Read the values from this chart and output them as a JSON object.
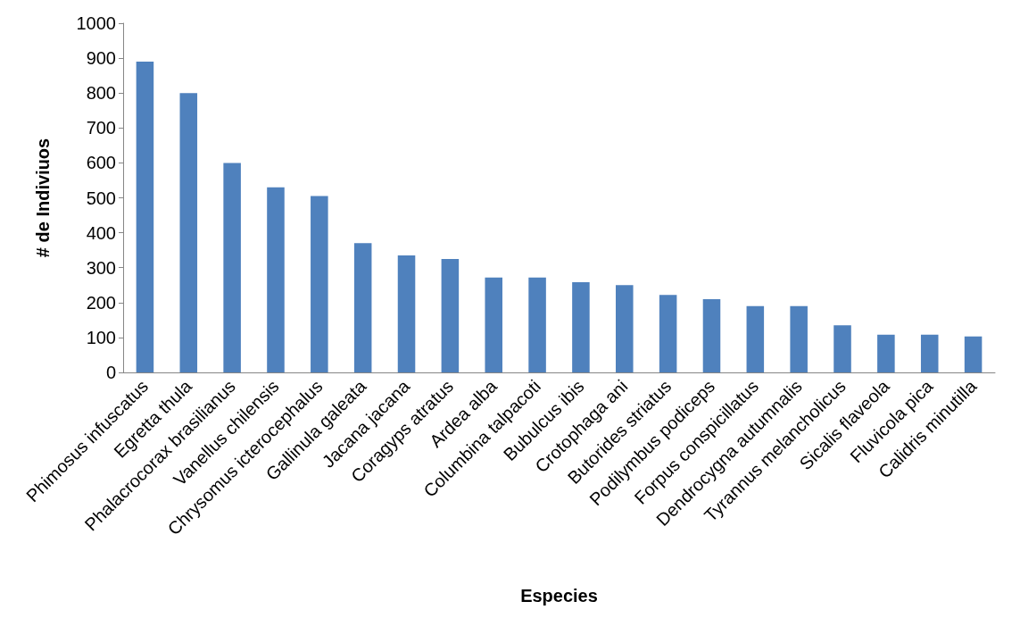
{
  "chart_data": {
    "type": "bar",
    "xlabel": "Especies",
    "ylabel": "# de Indiviuos",
    "categories": [
      "Phimosus infuscatus",
      "Egretta thula",
      "Phalacrocorax brasilianus",
      "Vanellus chilensis",
      "Chrysomus icterocephalus",
      "Gallinula galeata",
      "Jacana jacana",
      "Coragyps atratus",
      "Ardea alba",
      "Columbina talpacoti",
      "Bubulcus ibis",
      "Crotophaga ani",
      "Butorides striatus",
      "Podilymbus podiceps",
      "Forpus conspicillatus",
      "Dendrocygna autumnalis",
      "Tyrannus melancholicus",
      "Sicalis flaveola",
      "Fluvicola pica",
      "Calidris minutilla"
    ],
    "values": [
      890,
      800,
      600,
      530,
      505,
      370,
      335,
      325,
      272,
      272,
      258,
      250,
      222,
      210,
      190,
      190,
      135,
      108,
      108,
      103
    ],
    "color": "#4f81bd",
    "ylim": [
      0,
      1000
    ],
    "yticks": [
      0,
      100,
      200,
      300,
      400,
      500,
      600,
      700,
      800,
      900,
      1000
    ],
    "grid": false
  }
}
